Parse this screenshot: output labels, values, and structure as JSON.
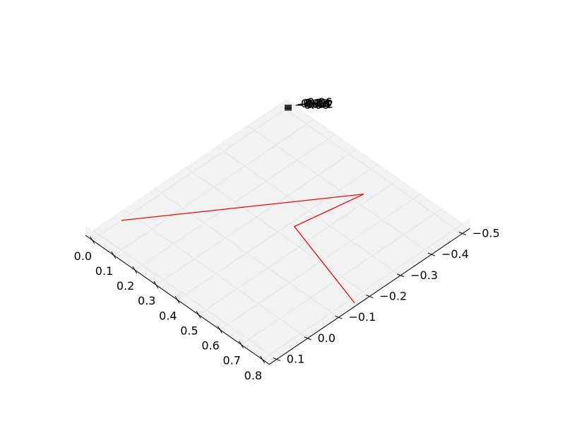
{
  "chart_data": {
    "type": "line",
    "projection": "3d",
    "title": "",
    "xlabel": "",
    "ylabel": "",
    "zlabel": "",
    "grid": true,
    "x_ticks": [
      "0.0",
      "0.1",
      "0.2",
      "0.3",
      "0.4",
      "0.5",
      "0.6",
      "0.7",
      "0.8"
    ],
    "y_ticks": [
      "−0.5",
      "−0.4",
      "−0.3",
      "−0.2",
      "−0.1",
      "0.0",
      "0.1"
    ],
    "z_ticks_overlapping": [
      "−0.06",
      "−0.04",
      "−0.02",
      "0.00",
      "0.02",
      "0.04",
      "0.06"
    ],
    "xlim": [
      0,
      0.8
    ],
    "ylim": [
      -0.5,
      0.1
    ],
    "series": [
      {
        "color": "#ff0000",
        "x": [
          0.82,
          0.42,
          0.47,
          0.0
        ],
        "y": [
          -0.16,
          -0.24,
          -0.43,
          0.03
        ],
        "z": [
          0,
          0,
          0,
          0
        ]
      }
    ]
  }
}
